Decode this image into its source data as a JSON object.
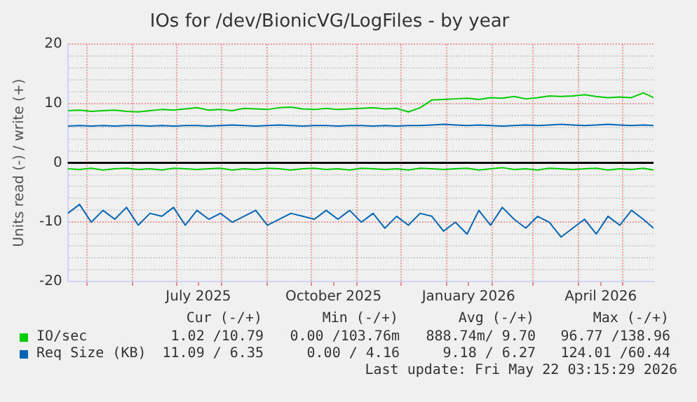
{
  "chart_data": {
    "type": "line",
    "title": "IOs for /dev/BionicVG/LogFiles - by year",
    "ylabel": "Units read (-) / write (+)",
    "x": [
      "2025-04-18",
      "2025-04-26",
      "2025-05-04",
      "2025-05-12",
      "2025-05-20",
      "2025-05-28",
      "2025-06-05",
      "2025-06-13",
      "2025-06-21",
      "2025-06-29",
      "2025-07-07",
      "2025-07-15",
      "2025-07-23",
      "2025-07-31",
      "2025-08-08",
      "2025-08-16",
      "2025-08-24",
      "2025-09-01",
      "2025-09-09",
      "2025-09-17",
      "2025-09-25",
      "2025-10-03",
      "2025-10-11",
      "2025-10-19",
      "2025-10-27",
      "2025-11-04",
      "2025-11-12",
      "2025-11-20",
      "2025-11-28",
      "2025-12-06",
      "2025-12-14",
      "2025-12-22",
      "2025-12-30",
      "2026-01-07",
      "2026-01-15",
      "2026-01-23",
      "2026-01-31",
      "2026-02-08",
      "2026-02-16",
      "2026-02-24",
      "2026-03-04",
      "2026-03-12",
      "2026-03-20",
      "2026-03-28",
      "2026-04-05",
      "2026-04-13",
      "2026-04-21",
      "2026-04-29",
      "2026-05-07",
      "2026-05-15",
      "2026-05-22"
    ],
    "xlim": [
      "2025-04-18",
      "2026-05-22"
    ],
    "xticks": [
      {
        "value": "2025-05-01",
        "label": null
      },
      {
        "value": "2025-06-01",
        "label": null
      },
      {
        "value": "2025-07-01",
        "label": null
      },
      {
        "value": "2025-07-16",
        "label": "July 2025"
      },
      {
        "value": "2025-08-01",
        "label": null
      },
      {
        "value": "2025-09-01",
        "label": null
      },
      {
        "value": "2025-10-01",
        "label": null
      },
      {
        "value": "2025-10-16",
        "label": "October 2025"
      },
      {
        "value": "2025-11-01",
        "label": null
      },
      {
        "value": "2025-12-01",
        "label": null
      },
      {
        "value": "2026-01-01",
        "label": null
      },
      {
        "value": "2026-01-16",
        "label": "January 2026"
      },
      {
        "value": "2026-02-01",
        "label": null
      },
      {
        "value": "2026-03-01",
        "label": null
      },
      {
        "value": "2026-04-01",
        "label": null
      },
      {
        "value": "2026-04-16",
        "label": "April 2026"
      },
      {
        "value": "2026-05-01",
        "label": null
      }
    ],
    "ylim": [
      -20,
      20
    ],
    "yticks": [
      -20,
      {
        "value": -18,
        "label": null
      },
      {
        "value": -16,
        "label": null
      },
      {
        "value": -14,
        "label": null
      },
      {
        "value": -12,
        "label": null
      },
      -10,
      {
        "value": -8,
        "label": null
      },
      {
        "value": -6,
        "label": null
      },
      {
        "value": -4,
        "label": null
      },
      {
        "value": -2,
        "label": null
      },
      0,
      {
        "value": 2,
        "label": null
      },
      {
        "value": 4,
        "label": null
      },
      {
        "value": 6,
        "label": null
      },
      {
        "value": 8,
        "label": null
      },
      10,
      {
        "value": 12,
        "label": null
      },
      {
        "value": 14,
        "label": null
      },
      {
        "value": 16,
        "label": null
      },
      {
        "value": 18,
        "label": null
      },
      20
    ],
    "grid": true,
    "legend": "bottom",
    "ref_lines": [
      {
        "axis": "y",
        "value": 0,
        "color": "#000000"
      }
    ],
    "series": [
      {
        "name": "IO/sec",
        "color": "#00cc00",
        "values": [
          8.8,
          8.9,
          8.7,
          8.8,
          8.9,
          8.7,
          8.6,
          8.8,
          9.0,
          8.9,
          9.1,
          9.3,
          8.9,
          9.0,
          8.8,
          9.2,
          9.1,
          9.0,
          9.3,
          9.4,
          9.1,
          9.0,
          9.2,
          9.0,
          9.1,
          9.2,
          9.3,
          9.1,
          9.2,
          8.6,
          9.3,
          10.6,
          10.7,
          10.8,
          10.9,
          10.7,
          11.0,
          10.9,
          11.2,
          10.8,
          11.0,
          11.3,
          11.2,
          11.3,
          11.5,
          11.2,
          11.0,
          11.1,
          11.0,
          11.8,
          11.0
        ]
      },
      {
        "color": "#00cc00",
        "values": [
          -1.0,
          -1.1,
          -0.9,
          -1.2,
          -1.0,
          -0.9,
          -1.1,
          -1.0,
          -1.2,
          -0.9,
          -1.0,
          -1.1,
          -1.0,
          -0.9,
          -1.2,
          -1.0,
          -1.1,
          -0.9,
          -1.0,
          -1.2,
          -1.0,
          -0.9,
          -1.1,
          -1.0,
          -1.2,
          -0.9,
          -1.0,
          -1.1,
          -1.0,
          -1.2,
          -0.9,
          -1.0,
          -1.1,
          -1.0,
          -0.9,
          -1.2,
          -1.0,
          -0.8,
          -1.1,
          -1.0,
          -1.2,
          -0.9,
          -1.0,
          -1.1,
          -1.0,
          -0.9,
          -1.2,
          -1.0,
          -1.1,
          -0.9,
          -1.2
        ]
      },
      {
        "name": "Req Size (KB)",
        "color": "#0066b3",
        "values": [
          6.2,
          6.3,
          6.2,
          6.3,
          6.2,
          6.3,
          6.3,
          6.2,
          6.3,
          6.2,
          6.3,
          6.3,
          6.2,
          6.3,
          6.4,
          6.3,
          6.2,
          6.3,
          6.4,
          6.3,
          6.2,
          6.3,
          6.3,
          6.2,
          6.3,
          6.3,
          6.2,
          6.3,
          6.2,
          6.3,
          6.3,
          6.4,
          6.5,
          6.4,
          6.3,
          6.4,
          6.3,
          6.2,
          6.3,
          6.4,
          6.3,
          6.4,
          6.5,
          6.4,
          6.3,
          6.4,
          6.5,
          6.4,
          6.3,
          6.4,
          6.3
        ]
      },
      {
        "color": "#0066b3",
        "values": [
          -8.5,
          -7.0,
          -10.0,
          -8.0,
          -9.5,
          -7.5,
          -10.5,
          -8.5,
          -9.0,
          -7.5,
          -10.5,
          -8.0,
          -9.5,
          -8.5,
          -10.0,
          -9.0,
          -8.0,
          -10.5,
          -9.5,
          -8.5,
          -9.0,
          -9.5,
          -8.0,
          -9.5,
          -8.0,
          -10.0,
          -8.5,
          -11.0,
          -9.0,
          -10.5,
          -8.5,
          -9.0,
          -11.5,
          -10.0,
          -12.0,
          -8.0,
          -10.5,
          -7.5,
          -9.5,
          -11.0,
          -9.0,
          -10.0,
          -12.5,
          -11.0,
          -9.5,
          -12.0,
          -9.0,
          -10.5,
          -8.0,
          -9.5,
          -11.0
        ]
      }
    ],
    "annotations": [
      "Cur (-/+)",
      "Min (-/+)",
      "Avg (-/+)",
      "Max (-/+)",
      "1.02 /10.79",
      "0.00 /103.76m",
      "888.74m/ 9.70",
      "96.77 /138.96",
      "11.09 / 6.35",
      "0.00 / 4.16",
      "9.18 / 6.27",
      "124.01 /60.44",
      "Last update: Fri May 22 03:15:29 2026"
    ]
  }
}
